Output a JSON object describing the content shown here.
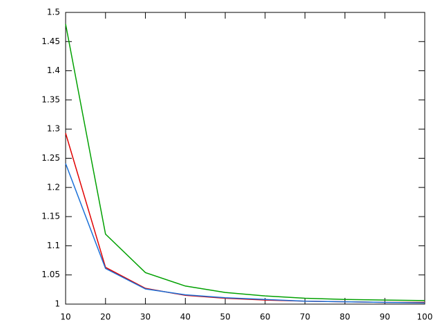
{
  "chart_data": {
    "type": "line",
    "x": [
      10,
      20,
      30,
      40,
      50,
      60,
      70,
      80,
      90,
      100
    ],
    "series": [
      {
        "color": "#00a000",
        "values": [
          1.48,
          1.12,
          1.054,
          1.031,
          1.02,
          1.014,
          1.01,
          1.008,
          1.007,
          1.006
        ]
      },
      {
        "color": "#e00000",
        "values": [
          1.293,
          1.063,
          1.027,
          1.015,
          1.01,
          1.007,
          1.005,
          1.004,
          1.003,
          1.003
        ]
      },
      {
        "color": "#1a70d8",
        "values": [
          1.241,
          1.061,
          1.026,
          1.016,
          1.011,
          1.008,
          1.005,
          1.004,
          1.003,
          1.002
        ]
      }
    ],
    "xlim": [
      10,
      100
    ],
    "xticks": [
      10,
      20,
      30,
      40,
      50,
      60,
      70,
      80,
      90,
      100
    ],
    "ylim": [
      1,
      1.5
    ],
    "yticks": [
      1,
      1.05,
      1.1,
      1.15,
      1.2,
      1.25,
      1.3,
      1.35,
      1.4,
      1.45,
      1.5
    ]
  }
}
